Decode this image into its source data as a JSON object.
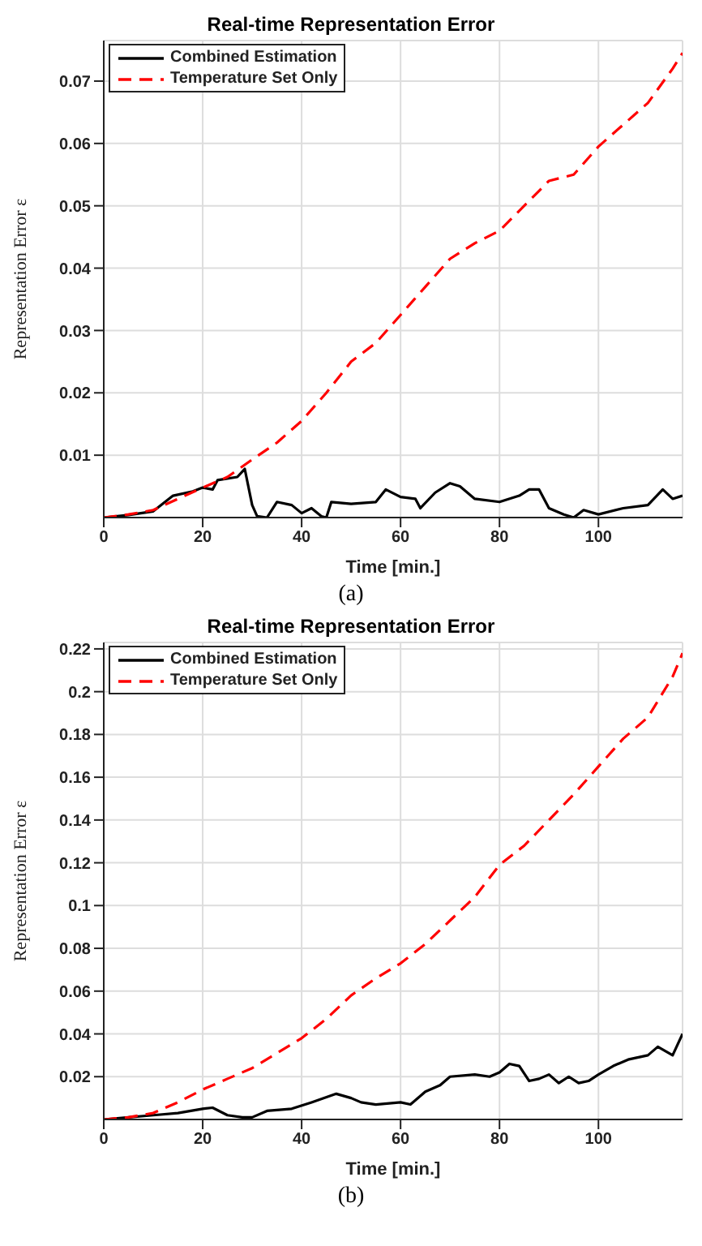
{
  "chart_data": [
    {
      "type": "line",
      "title": "Real-time Representation Error",
      "xlabel": "Time [min.]",
      "ylabel": "Representation Error ε",
      "annotations": [
        "(a)"
      ],
      "xlim": [
        0,
        117
      ],
      "xticks": [
        0,
        20,
        40,
        60,
        80,
        100
      ],
      "ylim": [
        0,
        0.0765
      ],
      "yticks": [
        0.01,
        0.02,
        0.03,
        0.04,
        0.05,
        0.06,
        0.07
      ],
      "grid": true,
      "legend": "top left",
      "marker": "none",
      "series": [
        {
          "name": "Combined Estimation",
          "color": "#000000",
          "line_style": "solid",
          "x": [
            0,
            5,
            10,
            14,
            18,
            20,
            22,
            23,
            27,
            28.5,
            30,
            31,
            33,
            35,
            38,
            40,
            42,
            44,
            45,
            46,
            50,
            55,
            57,
            60,
            63,
            64,
            67,
            70,
            72,
            75,
            80,
            84,
            86,
            88,
            90,
            93,
            95,
            97,
            100,
            105,
            110,
            113,
            115,
            117
          ],
          "values": [
            0,
            0.0004,
            0.001,
            0.0035,
            0.0042,
            0.0048,
            0.0045,
            0.006,
            0.0065,
            0.0078,
            0.002,
            0.0002,
            0,
            0.0025,
            0.002,
            0.0007,
            0.0015,
            0.0002,
            0,
            0.0025,
            0.0022,
            0.0025,
            0.0045,
            0.0033,
            0.003,
            0.0015,
            0.004,
            0.0055,
            0.005,
            0.003,
            0.0025,
            0.0035,
            0.0045,
            0.0045,
            0.0015,
            0.0005,
            0,
            0.0012,
            0.0005,
            0.0015,
            0.002,
            0.0045,
            0.003,
            0.0035
          ]
        },
        {
          "name": "Temperature Set Only",
          "color": "#ff0000",
          "line_style": "dashed",
          "x": [
            0,
            5,
            10,
            15,
            20,
            25,
            30,
            35,
            40,
            45,
            50,
            55,
            60,
            65,
            70,
            75,
            80,
            85,
            90,
            95,
            100,
            105,
            110,
            115,
            117
          ],
          "values": [
            0,
            0.0005,
            0.0012,
            0.003,
            0.0048,
            0.0065,
            0.0093,
            0.012,
            0.0155,
            0.02,
            0.025,
            0.028,
            0.0325,
            0.037,
            0.0415,
            0.044,
            0.046,
            0.05,
            0.054,
            0.055,
            0.0595,
            0.063,
            0.0665,
            0.072,
            0.0745
          ]
        }
      ]
    },
    {
      "type": "line",
      "title": "Real-time Representation Error",
      "xlabel": "Time [min.]",
      "ylabel": "Representation Error ε",
      "annotations": [
        "(b)"
      ],
      "xlim": [
        0,
        117
      ],
      "xticks": [
        0,
        20,
        40,
        60,
        80,
        100
      ],
      "ylim": [
        0,
        0.223
      ],
      "yticks": [
        0.02,
        0.04,
        0.06,
        0.08,
        0.1,
        0.12,
        0.14,
        0.16,
        0.18,
        0.2,
        0.22
      ],
      "grid": true,
      "legend": "top left",
      "marker": "none",
      "series": [
        {
          "name": "Combined Estimation",
          "color": "#000000",
          "line_style": "solid",
          "x": [
            0,
            5,
            10,
            15,
            20,
            22,
            25,
            28,
            30,
            33,
            38,
            42,
            47,
            50,
            52,
            55,
            60,
            62,
            65,
            68,
            70,
            75,
            78,
            80,
            82,
            84,
            86,
            88,
            90,
            92,
            94,
            96,
            98,
            100,
            103,
            106,
            110,
            112,
            115,
            117
          ],
          "values": [
            0,
            0.001,
            0.002,
            0.003,
            0.005,
            0.0055,
            0.002,
            0.001,
            0.001,
            0.004,
            0.005,
            0.008,
            0.012,
            0.01,
            0.008,
            0.007,
            0.008,
            0.007,
            0.013,
            0.016,
            0.02,
            0.021,
            0.02,
            0.022,
            0.026,
            0.025,
            0.018,
            0.019,
            0.021,
            0.017,
            0.02,
            0.017,
            0.018,
            0.021,
            0.025,
            0.028,
            0.03,
            0.034,
            0.03,
            0.04
          ]
        },
        {
          "name": "Temperature Set Only",
          "color": "#ff0000",
          "line_style": "dashed",
          "x": [
            0,
            5,
            10,
            15,
            20,
            25,
            30,
            35,
            40,
            45,
            50,
            55,
            60,
            65,
            70,
            75,
            80,
            85,
            90,
            95,
            100,
            105,
            110,
            115,
            117
          ],
          "values": [
            0,
            0.001,
            0.003,
            0.008,
            0.014,
            0.019,
            0.024,
            0.031,
            0.038,
            0.047,
            0.058,
            0.066,
            0.073,
            0.082,
            0.093,
            0.104,
            0.119,
            0.128,
            0.14,
            0.152,
            0.165,
            0.178,
            0.188,
            0.207,
            0.218
          ]
        }
      ]
    }
  ]
}
